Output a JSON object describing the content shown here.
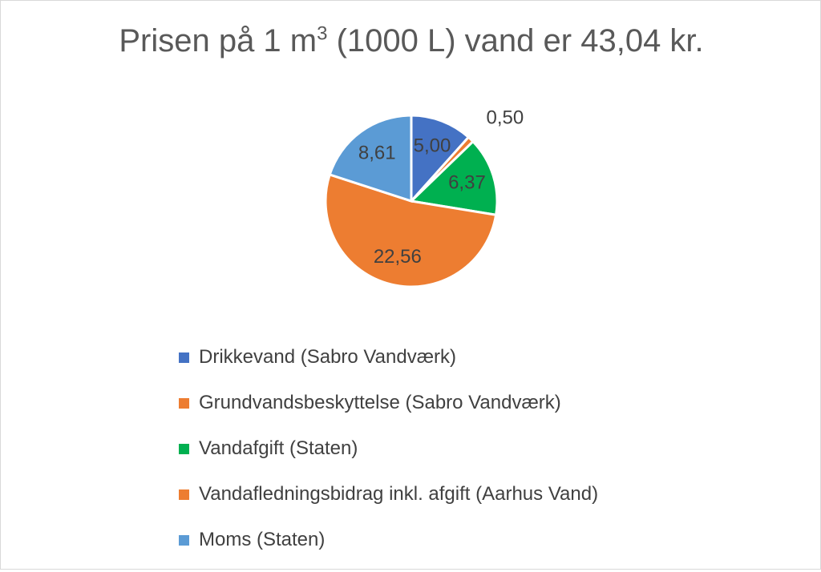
{
  "chart_data": {
    "type": "pie",
    "title_main": "Prisen på 1 m",
    "title_sup": "3",
    "title_rest": " (1000 L) vand er 43,04 kr.",
    "series": [
      {
        "name": "Drikkevand (Sabro Vandværk)",
        "value": 5.0,
        "label": "5,00",
        "color": "#4472C4"
      },
      {
        "name": "Grundvandsbeskyttelse (Sabro Vandværk)",
        "value": 0.5,
        "label": "0,50",
        "color": "#ED7D31"
      },
      {
        "name": "Vandafgift (Staten)",
        "value": 6.37,
        "label": "6,37",
        "color": "#00B050"
      },
      {
        "name": "Vandafledningsbidrag inkl. afgift (Aarhus Vand)",
        "value": 22.56,
        "label": "22,56",
        "color": "#ED7D31"
      },
      {
        "name": "Moms (Staten)",
        "value": 8.61,
        "label": "8,61",
        "color": "#5B9BD5"
      }
    ],
    "legend_position": "bottom"
  }
}
